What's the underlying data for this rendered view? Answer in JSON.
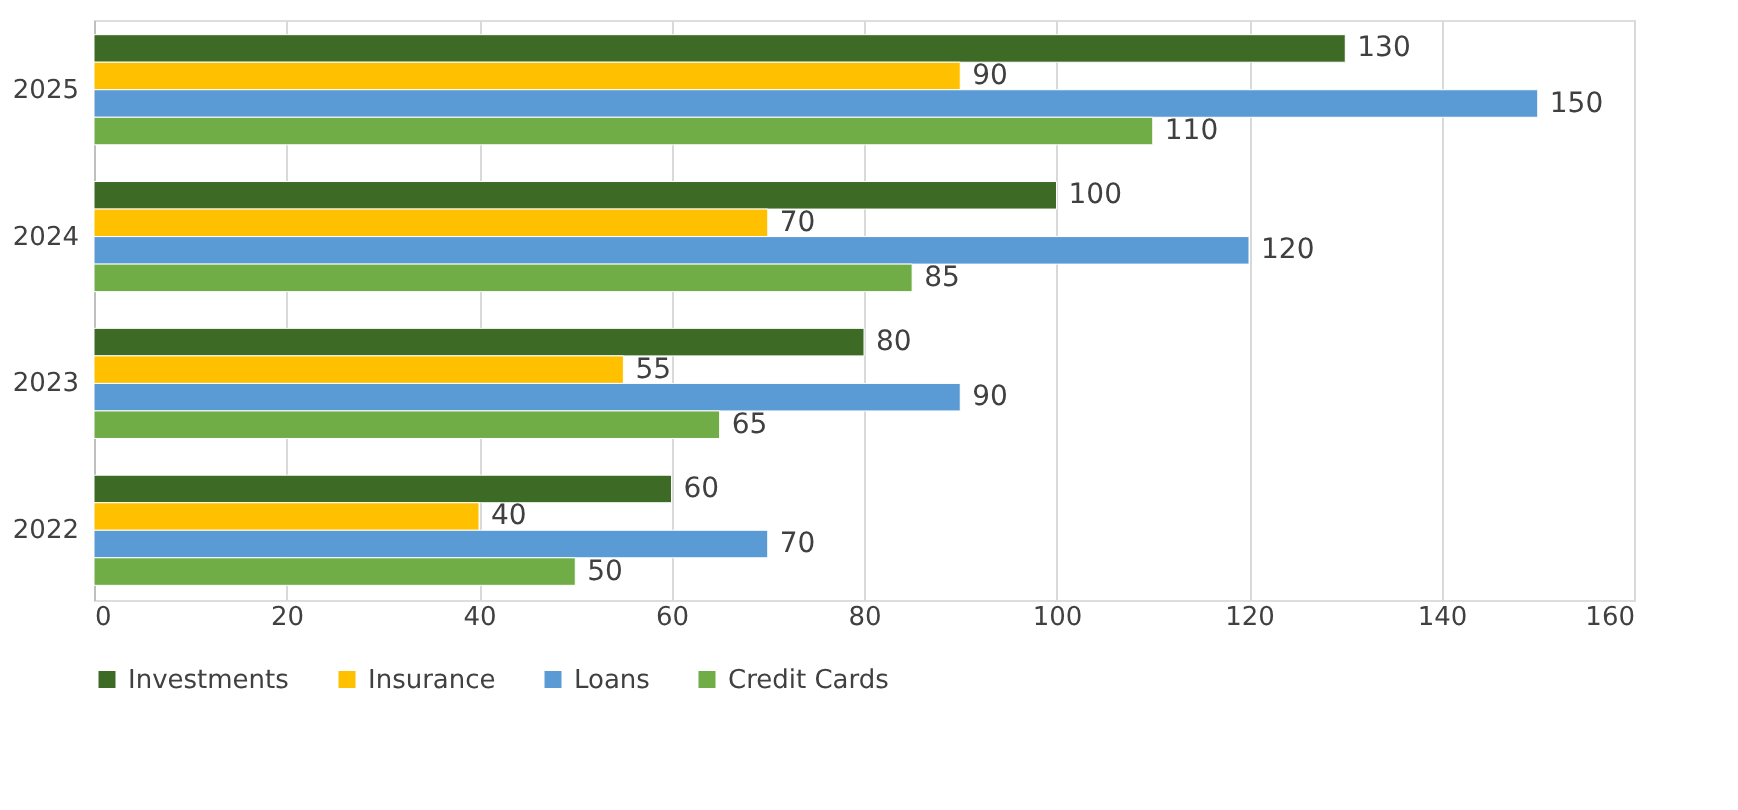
{
  "chart_data": {
    "type": "bar",
    "orientation": "horizontal",
    "categories": [
      "2025",
      "2024",
      "2023",
      "2022"
    ],
    "series": [
      {
        "name": "Investments",
        "color": "#3d6b25",
        "values": [
          130,
          100,
          80,
          60
        ]
      },
      {
        "name": "Insurance",
        "color": "#ffc000",
        "values": [
          90,
          70,
          55,
          40
        ]
      },
      {
        "name": "Loans",
        "color": "#5b9bd5",
        "values": [
          150,
          120,
          90,
          70
        ]
      },
      {
        "name": "Credit Cards",
        "color": "#70ad47",
        "values": [
          110,
          85,
          65,
          50
        ]
      }
    ],
    "xlim": [
      0,
      160
    ],
    "xticks": [
      0,
      20,
      40,
      60,
      80,
      100,
      120,
      140,
      160
    ],
    "grid": "x",
    "legend": "bottom",
    "data_labels": true
  }
}
